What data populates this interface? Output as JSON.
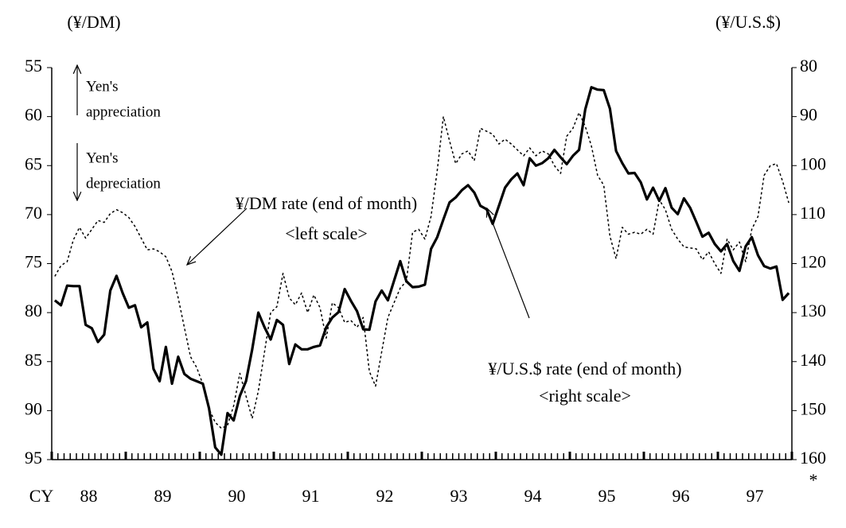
{
  "chart_data": {
    "type": "line",
    "y_unit_label": "(¥/DM)",
    "y2_unit_label": "(¥/U.S.$)",
    "xlabel": "CY",
    "categories": [
      null,
      null,
      null,
      null,
      null,
      "88",
      null,
      null,
      null,
      null,
      null,
      null,
      null,
      null,
      null,
      null,
      null,
      "89",
      null,
      null,
      null,
      null,
      null,
      null,
      null,
      null,
      null,
      null,
      null,
      "90",
      null,
      null,
      null,
      null,
      null,
      null,
      null,
      null,
      null,
      null,
      null,
      "91",
      null,
      null,
      null,
      null,
      null,
      null,
      null,
      null,
      null,
      null,
      null,
      "92",
      null,
      null,
      null,
      null,
      null,
      null,
      null,
      null,
      null,
      null,
      null,
      "93",
      null,
      null,
      null,
      null,
      null,
      null,
      null,
      null,
      null,
      null,
      null,
      "94",
      null,
      null,
      null,
      null,
      null,
      null,
      null,
      null,
      null,
      null,
      null,
      "95",
      null,
      null,
      null,
      null,
      null,
      null,
      null,
      null,
      null,
      null,
      null,
      "96",
      null,
      null,
      null,
      null,
      null,
      null,
      null,
      null,
      null,
      null,
      null,
      "97",
      null,
      null,
      null,
      null,
      null,
      null
    ],
    "series": [
      {
        "name": "¥/DM rate (end of month)",
        "color": "#000000",
        "line_style": "dotted",
        "values": [
          76.3,
          75.2,
          74.8,
          72.6,
          71.3,
          72.4,
          71.5,
          70.6,
          70.8,
          69.9,
          69.5,
          69.8,
          70.3,
          71.2,
          72.4,
          73.6,
          73.5,
          73.8,
          74.3,
          75.8,
          78.5,
          81.5,
          84.5,
          85.6,
          87.3,
          89.8,
          91.2,
          91.8,
          91.5,
          89.5,
          86.2,
          88.5,
          90.8,
          88.0,
          84.0,
          80.0,
          79.4,
          76.0,
          78.5,
          79.2,
          78.0,
          80.0,
          78.2,
          79.5,
          82.6,
          79.0,
          79.5,
          81.0,
          80.8,
          81.5,
          80.5,
          86.0,
          87.5,
          84.0,
          80.5,
          79.0,
          77.5,
          76.8,
          71.8,
          71.5,
          72.5,
          70.2,
          65.5,
          60.0,
          62.5,
          64.8,
          63.8,
          63.5,
          64.5,
          61.2,
          61.5,
          61.8,
          62.8,
          62.3,
          62.8,
          63.4,
          64.0,
          63.2,
          64.0,
          63.5,
          63.8,
          65.0,
          65.8,
          62.0,
          61.2,
          59.6,
          61.0,
          63.0,
          66.0,
          67.0,
          72.2,
          74.5,
          71.3,
          72.0,
          71.8,
          72.0,
          71.5,
          72.0,
          68.5,
          69.5,
          71.5,
          72.5,
          73.3,
          73.4,
          73.5,
          74.6,
          73.8,
          75.0,
          76.0,
          72.5,
          73.6,
          72.8,
          74.8,
          71.5,
          70.2,
          66.0,
          65.0,
          64.8,
          66.6,
          68.8
        ]
      },
      {
        "name": "¥/U.S.$ rate (end of month)",
        "color": "#000000",
        "line_style": "solid",
        "axis": "y2",
        "values": [
          127.5,
          128.5,
          124.5,
          124.6,
          124.6,
          132.5,
          133.2,
          136.0,
          134.5,
          125.5,
          122.5,
          126.0,
          129.0,
          128.5,
          133.0,
          132.0,
          141.5,
          144.0,
          137.0,
          144.5,
          139.0,
          142.5,
          143.5,
          144.0,
          144.5,
          149.5,
          157.5,
          159.0,
          150.5,
          152.0,
          147.0,
          144.0,
          137.5,
          130.0,
          133.0,
          135.5,
          131.5,
          132.5,
          140.5,
          136.5,
          137.5,
          137.5,
          137.0,
          136.7,
          133.0,
          131.0,
          129.9,
          125.2,
          127.6,
          129.7,
          133.4,
          133.5,
          127.7,
          125.5,
          127.5,
          123.5,
          119.5,
          123.6,
          124.8,
          124.7,
          124.3,
          117.0,
          114.6,
          111.0,
          107.5,
          106.5,
          105.0,
          104.0,
          105.5,
          108.2,
          108.9,
          111.9,
          108.2,
          104.5,
          102.8,
          101.6,
          104.0,
          98.5,
          100.0,
          99.5,
          98.5,
          96.8,
          98.3,
          99.7,
          98.0,
          96.8,
          88.5,
          84.0,
          84.5,
          84.6,
          88.4,
          97.0,
          99.5,
          101.6,
          101.5,
          103.4,
          106.9,
          104.5,
          107.2,
          104.6,
          108.6,
          109.9,
          106.7,
          108.6,
          111.5,
          114.5,
          113.7,
          116.0,
          117.5,
          116.0,
          119.5,
          121.5,
          116.5,
          114.6,
          118.3,
          120.5,
          121.0,
          120.6,
          127.4,
          126.0
        ]
      }
    ],
    "ylim": [
      95,
      55
    ],
    "yticks": [
      55,
      60,
      65,
      70,
      75,
      80,
      85,
      90,
      95
    ],
    "y2lim": [
      160,
      80
    ],
    "y2ticks": [
      80,
      90,
      100,
      110,
      120,
      130,
      140,
      150,
      160
    ],
    "annotations": [
      "Yen's",
      "appreciation",
      "Yen's",
      "depreciation",
      "¥/DM rate (end of month)",
      "<left scale>",
      "¥/U.S.$ rate (end of month)",
      "<right scale>",
      "*"
    ]
  }
}
